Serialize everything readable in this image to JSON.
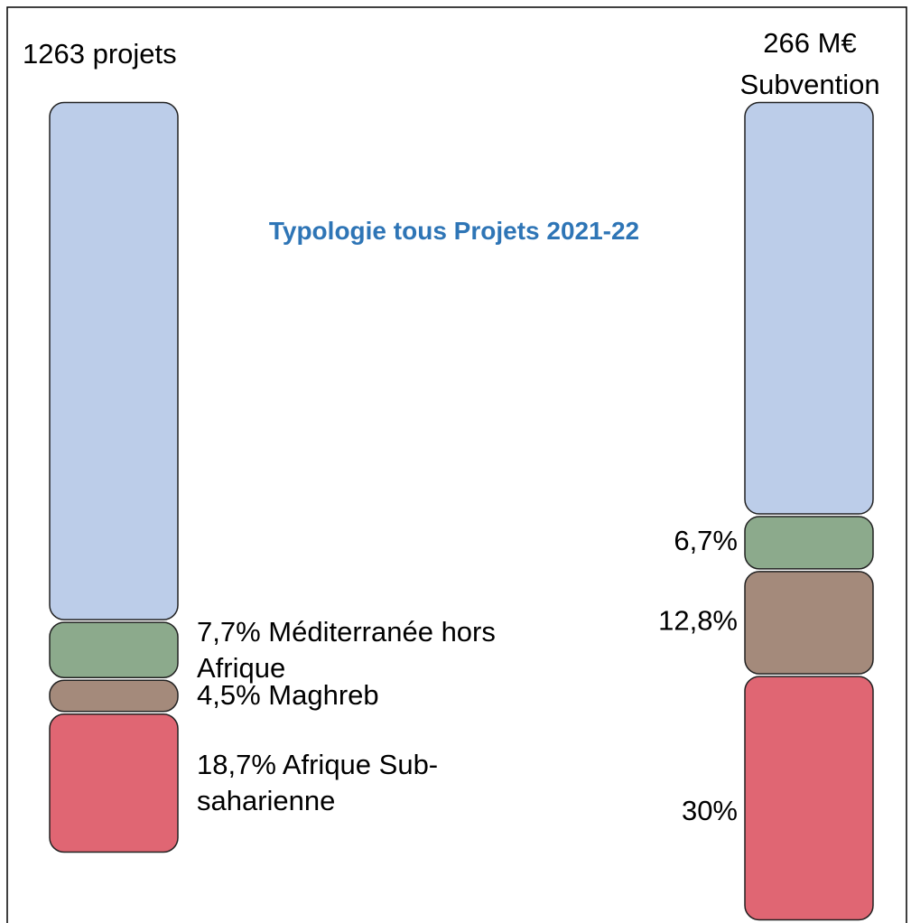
{
  "chart_data": {
    "type": "bar",
    "stacked": true,
    "title": "Typologie tous Projets 2021-22",
    "categories": [
      "1263 projets",
      "266 M€ Subvention"
    ],
    "ylim": [
      0,
      100
    ],
    "series": [
      {
        "name": "Afrique Sub-saharienne",
        "color": "#e06673",
        "values": [
          18.7,
          30
        ],
        "value_labels": [
          "18,7%",
          "30%"
        ]
      },
      {
        "name": "Maghreb",
        "color": "#a48a7b",
        "values": [
          4.5,
          12.8
        ],
        "value_labels": [
          "4,5%",
          "12,8%"
        ]
      },
      {
        "name": "Méditerranée hors Afrique",
        "color": "#8caa8c",
        "values": [
          7.7,
          6.7
        ],
        "value_labels": [
          "7,7%",
          "6,7%"
        ]
      },
      {
        "color": "#bccde9",
        "values": [
          69.1,
          50.5
        ]
      }
    ]
  }
}
